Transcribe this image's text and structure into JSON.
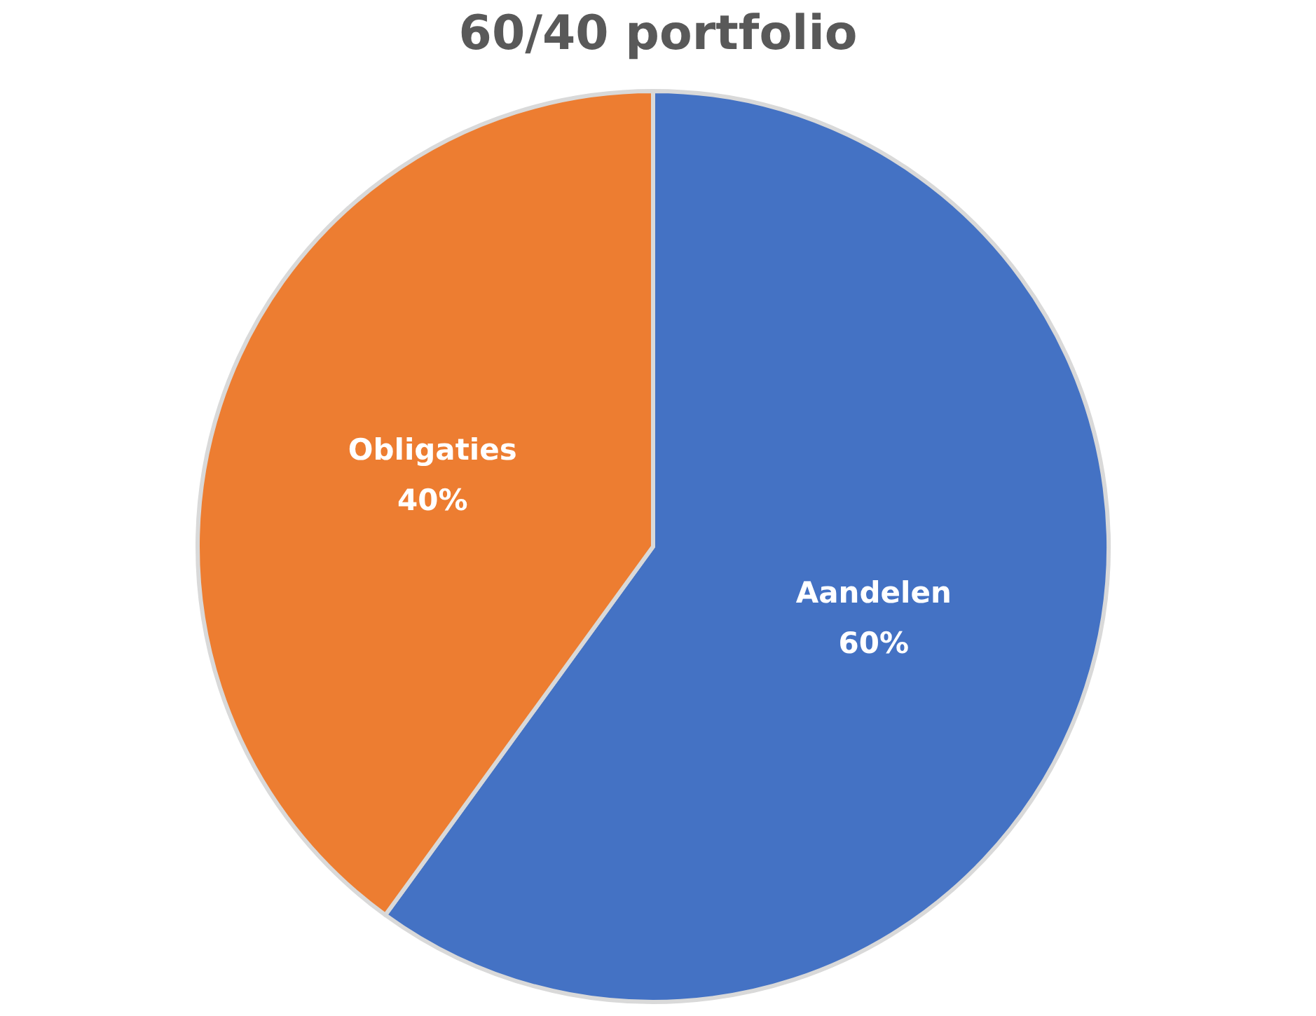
{
  "chart_data": {
    "type": "pie",
    "title": "60/40 portfolio",
    "categories": [
      "Aandelen",
      "Obligaties"
    ],
    "values": [
      60,
      40
    ],
    "value_labels": [
      "60%",
      "40%"
    ],
    "colors": [
      "#4472c4",
      "#ed7d31"
    ]
  }
}
